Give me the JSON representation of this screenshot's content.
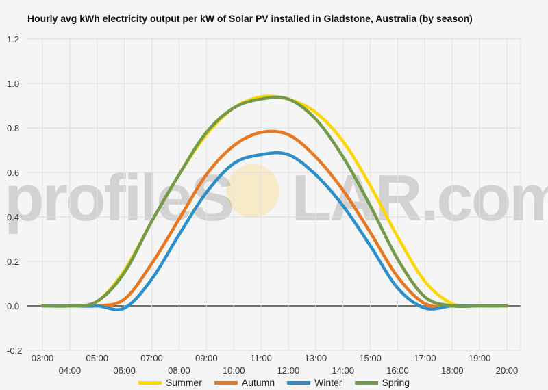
{
  "chart_data": {
    "type": "line",
    "title": "Hourly avg kWh electricity output per kW of Solar PV installed in Gladstone, Australia (by season)",
    "xlabel": "",
    "ylabel": "",
    "ylim": [
      -0.2,
      1.2
    ],
    "yticks": [
      "-0.2",
      "0.0",
      "0.2",
      "0.4",
      "0.6",
      "0.8",
      "1.0",
      "1.2"
    ],
    "yticks_values": [
      -0.2,
      0,
      0.2,
      0.4,
      0.6,
      0.8,
      1.0,
      1.2
    ],
    "x": [
      "03:00",
      "04:00",
      "05:00",
      "06:00",
      "07:00",
      "08:00",
      "09:00",
      "10:00",
      "11:00",
      "12:00",
      "13:00",
      "14:00",
      "15:00",
      "16:00",
      "17:00",
      "18:00",
      "19:00",
      "20:00"
    ],
    "grid": true,
    "legend_position": "bottom",
    "series": [
      {
        "name": "Summer",
        "color": "#FFD700",
        "values": [
          0,
          0,
          0.02,
          0.16,
          0.38,
          0.59,
          0.77,
          0.89,
          0.94,
          0.93,
          0.87,
          0.74,
          0.54,
          0.31,
          0.11,
          0.01,
          0,
          0
        ]
      },
      {
        "name": "Autumn",
        "color": "#E87722",
        "values": [
          0,
          0,
          0,
          0.03,
          0.19,
          0.39,
          0.59,
          0.72,
          0.78,
          0.77,
          0.67,
          0.52,
          0.33,
          0.13,
          0.01,
          0,
          0,
          0
        ]
      },
      {
        "name": "Winter",
        "color": "#2C8FC9",
        "values": [
          0,
          0,
          0,
          -0.01,
          0.12,
          0.32,
          0.51,
          0.64,
          0.68,
          0.68,
          0.59,
          0.45,
          0.27,
          0.08,
          -0.01,
          0,
          0,
          0
        ]
      },
      {
        "name": "Spring",
        "color": "#739A4B",
        "values": [
          0,
          0,
          0.02,
          0.15,
          0.38,
          0.59,
          0.78,
          0.89,
          0.93,
          0.93,
          0.84,
          0.67,
          0.45,
          0.21,
          0.04,
          0,
          0,
          0
        ]
      }
    ]
  },
  "watermark": {
    "text_left": "profileS",
    "text_right": "LAR.com"
  }
}
